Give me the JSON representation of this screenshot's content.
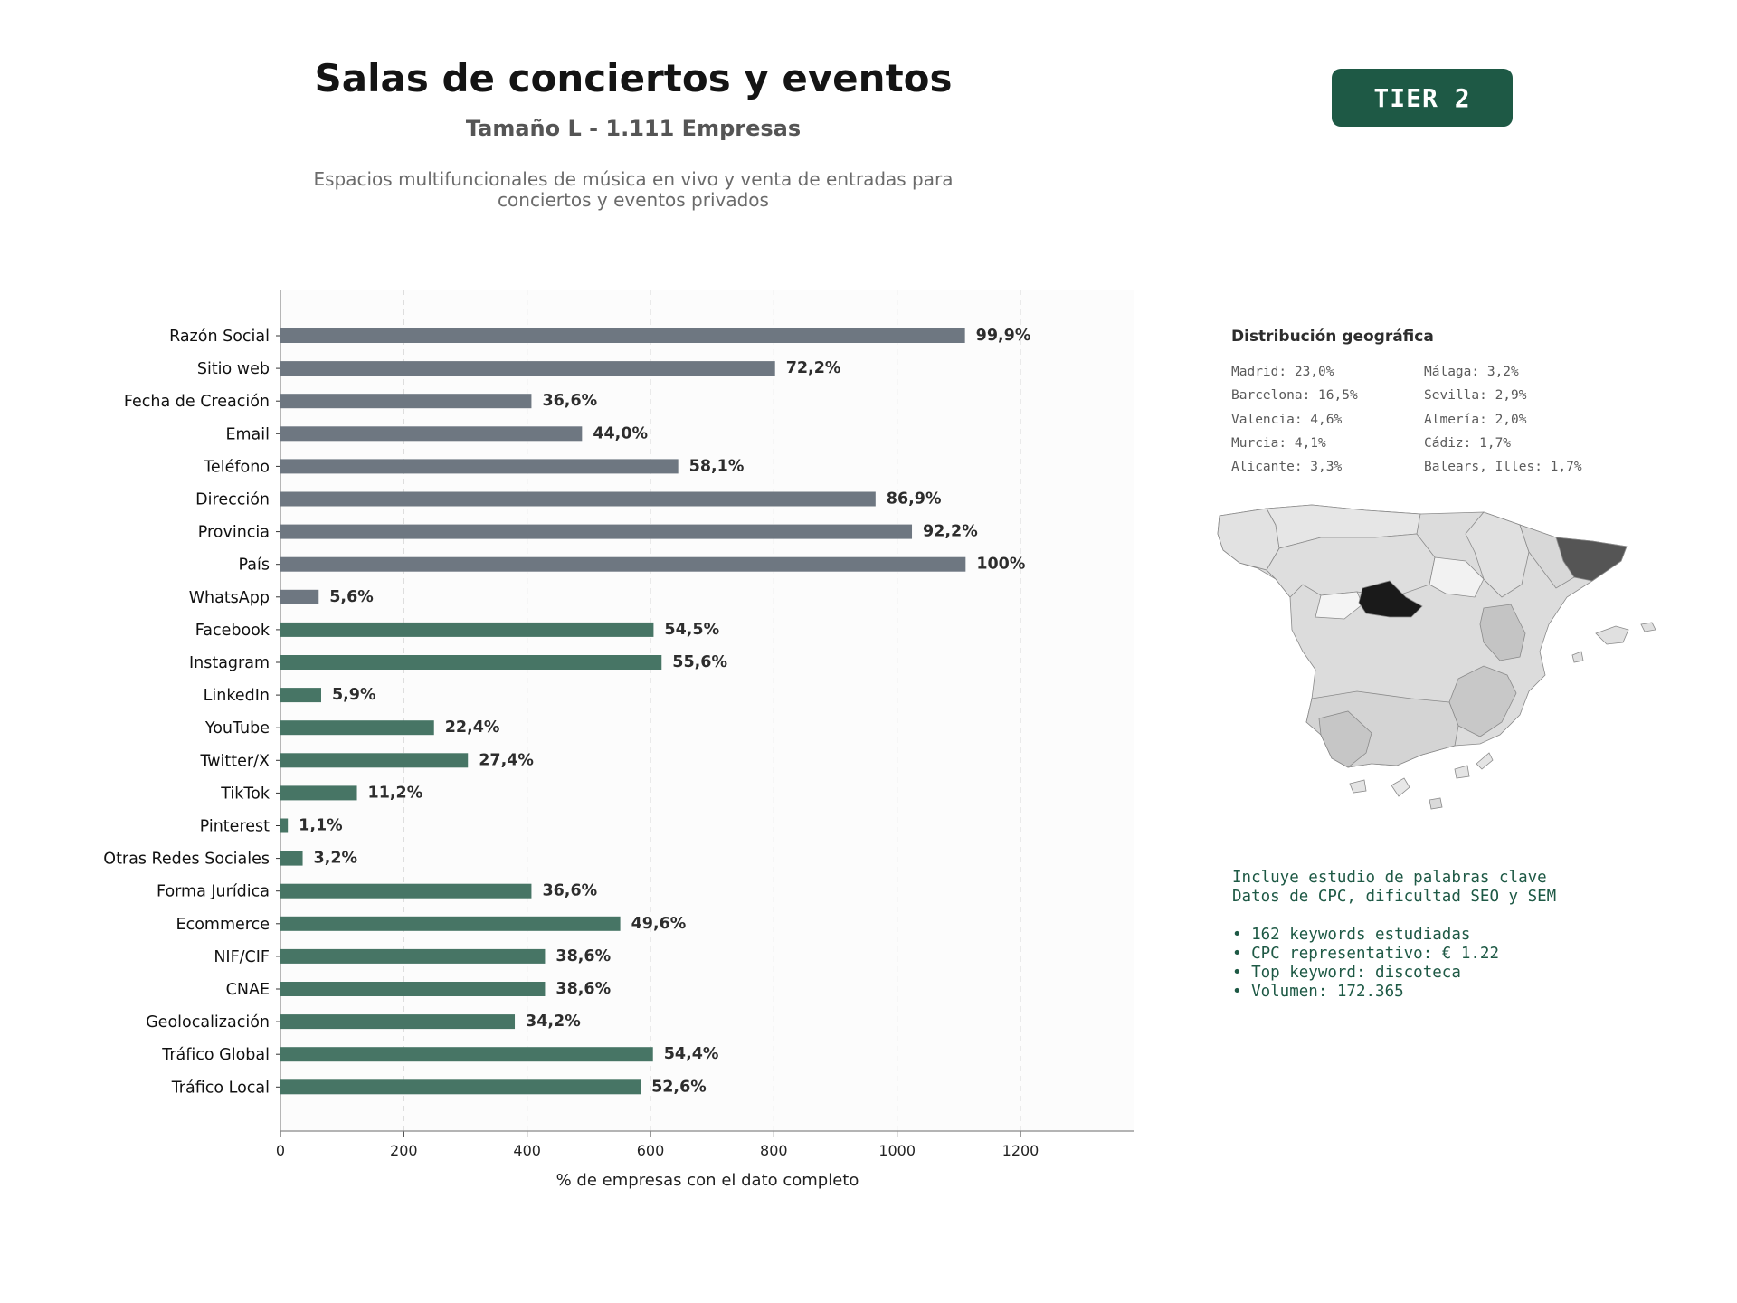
{
  "header": {
    "title": "Salas de conciertos y eventos",
    "subtitle": "Tamaño L - 1.111 Empresas",
    "description_line1": "Espacios multifuncionales de música en vivo y venta de entradas para",
    "description_line2": "conciertos y eventos privados",
    "tier_badge": "TIER 2"
  },
  "colors": {
    "contact_bar": "#6e7781",
    "social_bar": "#477565",
    "brand": "#1e5945"
  },
  "chart_data": {
    "type": "bar",
    "orientation": "horizontal",
    "xlabel": "% de empresas con el dato completo",
    "x_ticks": [
      0,
      200,
      400,
      600,
      800,
      1000,
      1200
    ],
    "xlim": [
      0,
      1388
    ],
    "grid": "vertical dashed",
    "categories": [
      "Razón Social",
      "Sitio web",
      "Fecha de Creación",
      "Email",
      "Teléfono",
      "Dirección",
      "Provincia",
      "País",
      "WhatsApp",
      "Facebook",
      "Instagram",
      "LinkedIn",
      "YouTube",
      "Twitter/X",
      "TikTok",
      "Pinterest",
      "Otras Redes Sociales",
      "Forma Jurídica",
      "Ecommerce",
      "NIF/CIF",
      "CNAE",
      "Geolocalización",
      "Tráfico Global",
      "Tráfico Local"
    ],
    "values": [
      1110,
      802,
      407,
      489,
      645,
      965,
      1024,
      1111,
      62,
      605,
      618,
      66,
      249,
      304,
      124,
      12,
      36,
      407,
      551,
      429,
      429,
      380,
      604,
      584
    ],
    "labels": [
      "99,9%",
      "72,2%",
      "36,6%",
      "44,0%",
      "58,1%",
      "86,9%",
      "92,2%",
      "100%",
      "5,6%",
      "54,5%",
      "55,6%",
      "5,9%",
      "22,4%",
      "27,4%",
      "11,2%",
      "1,1%",
      "3,2%",
      "36,6%",
      "49,6%",
      "38,6%",
      "38,6%",
      "34,2%",
      "54,4%",
      "52,6%"
    ],
    "groups": [
      "contact",
      "contact",
      "contact",
      "contact",
      "contact",
      "contact",
      "contact",
      "contact",
      "contact",
      "social",
      "social",
      "social",
      "social",
      "social",
      "social",
      "social",
      "social",
      "social",
      "social",
      "social",
      "social",
      "social",
      "social",
      "social"
    ]
  },
  "geo": {
    "title": "Distribución geográfica",
    "col1": [
      "Madrid: 23,0%",
      "Barcelona: 16,5%",
      "Valencia: 4,6%",
      "Murcia: 4,1%",
      "Alicante: 3,3%"
    ],
    "col2": [
      "Málaga: 3,2%",
      "Sevilla: 2,9%",
      "Almería: 2,0%",
      "Cádiz: 1,7%",
      "Balears, Illes: 1,7%"
    ]
  },
  "keywords": {
    "line1": "Incluye estudio de palabras clave",
    "line2": "Datos de CPC, dificultad SEO y SEM",
    "bullet1": "• 162 keywords estudiadas",
    "bullet2": "• CPC representativo: € 1.22",
    "bullet3": "• Top keyword: discoteca",
    "bullet4": "• Volumen: 172.365"
  }
}
